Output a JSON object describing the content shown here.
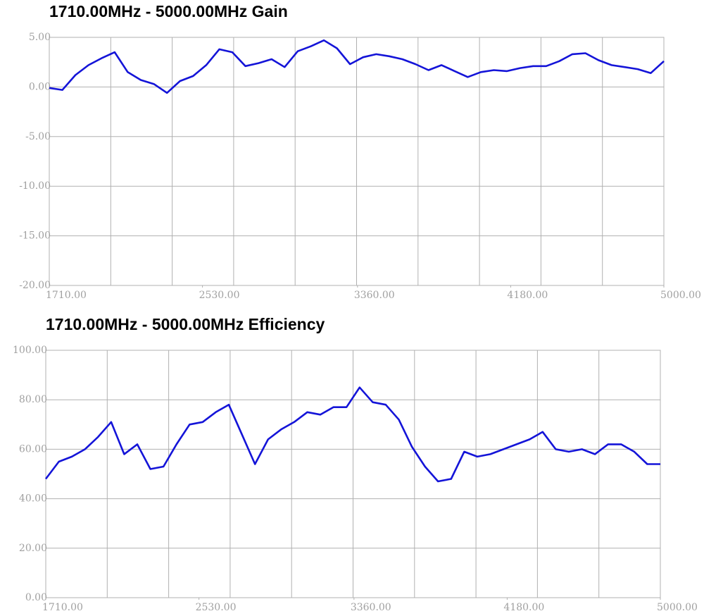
{
  "chart_data": [
    {
      "type": "line",
      "title": "1710.00MHz - 5000.00MHz Gain",
      "color": "#1414d8",
      "grid": true,
      "x": [
        1710,
        1780,
        1850,
        1920,
        1990,
        2060,
        2130,
        2200,
        2270,
        2340,
        2410,
        2480,
        2550,
        2620,
        2690,
        2760,
        2830,
        2900,
        2970,
        3040,
        3110,
        3180,
        3250,
        3320,
        3390,
        3460,
        3530,
        3600,
        3670,
        3740,
        3810,
        3880,
        3950,
        4020,
        4090,
        4160,
        4230,
        4300,
        4370,
        4440,
        4510,
        4580,
        4650,
        4720,
        4790,
        4860,
        4930,
        5000
      ],
      "values": [
        -0.1,
        -0.3,
        1.2,
        2.2,
        2.9,
        3.5,
        1.5,
        0.7,
        0.3,
        -0.6,
        0.6,
        1.1,
        2.2,
        3.8,
        3.5,
        2.1,
        2.4,
        2.8,
        2.0,
        3.6,
        4.1,
        4.7,
        3.9,
        2.3,
        3.0,
        3.3,
        3.1,
        2.8,
        2.3,
        1.7,
        2.2,
        1.6,
        1.0,
        1.5,
        1.7,
        1.6,
        1.9,
        2.1,
        2.1,
        2.6,
        3.3,
        3.4,
        2.7,
        2.2,
        2.0,
        1.8,
        1.4,
        2.6
      ],
      "xlim": [
        1710,
        5000
      ],
      "xticks": [
        {
          "value": 1710,
          "label": "1710.00"
        },
        {
          "value": 2530,
          "label": "2530.00"
        },
        {
          "value": 3360,
          "label": "3360.00"
        },
        {
          "value": 4180,
          "label": "4180.00"
        },
        {
          "value": 5000,
          "label": "5000.00"
        }
      ],
      "ylim": [
        -20,
        5
      ],
      "yticks": [
        {
          "value": 5,
          "label": "5.00"
        },
        {
          "value": 0,
          "label": "0.00"
        },
        {
          "value": -5,
          "label": "-5.00"
        },
        {
          "value": -10,
          "label": "-10.00"
        },
        {
          "value": -15,
          "label": "-15.00"
        },
        {
          "value": -20,
          "label": "-20.00"
        }
      ]
    },
    {
      "type": "line",
      "title": "1710.00MHz - 5000.00MHz Efficiency",
      "color": "#1414d8",
      "grid": true,
      "x": [
        1710,
        1780,
        1850,
        1920,
        1990,
        2060,
        2130,
        2200,
        2270,
        2340,
        2410,
        2480,
        2550,
        2620,
        2690,
        2760,
        2830,
        2900,
        2970,
        3040,
        3110,
        3180,
        3250,
        3320,
        3390,
        3460,
        3530,
        3600,
        3670,
        3740,
        3810,
        3880,
        3950,
        4020,
        4090,
        4160,
        4230,
        4300,
        4370,
        4440,
        4510,
        4580,
        4650,
        4720,
        4790,
        4860,
        4930,
        5000
      ],
      "values": [
        48,
        55,
        57,
        60,
        65,
        71,
        58,
        62,
        52,
        53,
        62,
        70,
        71,
        75,
        78,
        66,
        54,
        64,
        68,
        71,
        75,
        74,
        77,
        77,
        85,
        79,
        78,
        72,
        61,
        53,
        47,
        48,
        59,
        57,
        58,
        60,
        62,
        64,
        67,
        60,
        59,
        60,
        58,
        62,
        62,
        59,
        54,
        54
      ],
      "xlim": [
        1710,
        5000
      ],
      "xticks": [
        {
          "value": 1710,
          "label": "1710.00"
        },
        {
          "value": 2530,
          "label": "2530.00"
        },
        {
          "value": 3360,
          "label": "3360.00"
        },
        {
          "value": 4180,
          "label": "4180.00"
        },
        {
          "value": 5000,
          "label": "5000.00"
        }
      ],
      "ylim": [
        0,
        100
      ],
      "yticks": [
        {
          "value": 100,
          "label": "100.00"
        },
        {
          "value": 80,
          "label": "80.00"
        },
        {
          "value": 60,
          "label": "60.00"
        },
        {
          "value": 40,
          "label": "40.00"
        },
        {
          "value": 20,
          "label": "20.00"
        },
        {
          "value": 0,
          "label": "0.00"
        }
      ]
    }
  ]
}
